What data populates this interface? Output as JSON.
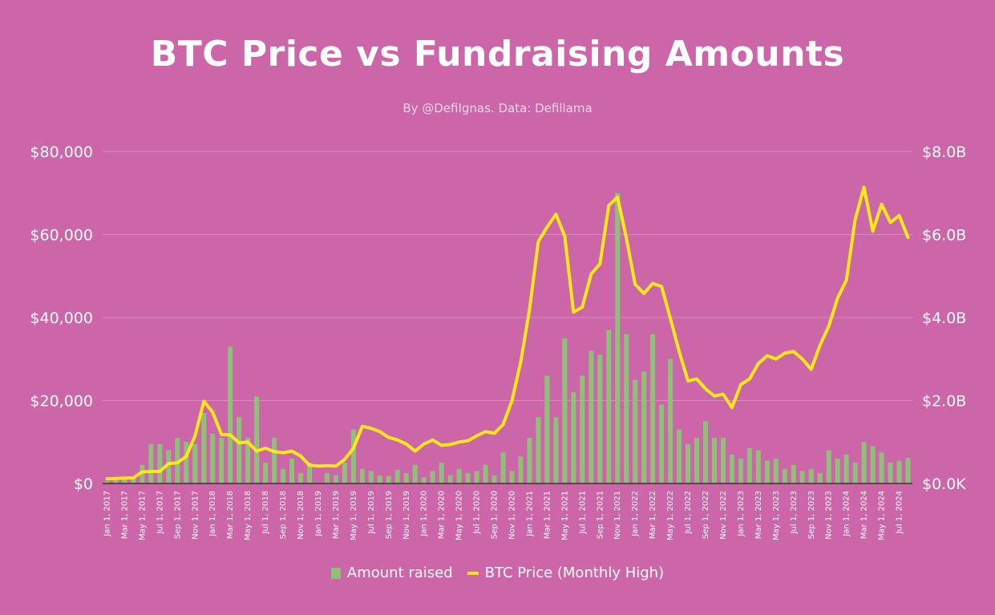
{
  "chart_data": {
    "type": "bar+line",
    "title": "BTC Price vs Fundraising Amounts",
    "subtitle": "By @DefiIgnas. Data: Defillama",
    "colors": {
      "background": "#cc66a8",
      "bars": "#8fbf78",
      "line": "#ffe81a",
      "grid": "#d58fbd",
      "text": "#ffffff"
    },
    "left_axis": {
      "min": 0,
      "max": 80000,
      "ticks": [
        0,
        20000,
        40000,
        60000,
        80000
      ],
      "tick_labels": [
        "$0",
        "$20,000",
        "$40,000",
        "$60,000",
        "$80,000"
      ]
    },
    "right_axis": {
      "min": 0,
      "max": 8.0,
      "ticks": [
        0,
        2,
        4,
        6,
        8
      ],
      "tick_labels": [
        "$0.0K",
        "$2.0B",
        "$4.0B",
        "$6.0B",
        "$8.0B"
      ]
    },
    "grid": true,
    "legend_position": "bottom",
    "x_tick_labels": [
      "Jan 1, 2017",
      "Mar 1, 2017",
      "May 1, 2017",
      "Jul 1, 2017",
      "Sep 1, 2017",
      "Nov 1, 2017",
      "Jan 1, 2018",
      "Mar 1, 2018",
      "May 1, 2018",
      "Jul 1, 2018",
      "Sep 1, 2018",
      "Nov 1, 2018",
      "Jan 1, 2019",
      "Mar 1, 2019",
      "May 1, 2019",
      "Jul 1, 2019",
      "Sep 1, 2019",
      "Nov 1, 2019",
      "Jan 1, 2020",
      "Mar 1, 2020",
      "May 1, 2020",
      "Jul 1, 2020",
      "Sep 1, 2020",
      "Nov 1, 2020",
      "Jan 1, 2021",
      "Mar 1, 2021",
      "May 1, 2021",
      "Jul 1, 2021",
      "Sep 1, 2021",
      "Nov 1, 2021",
      "Jan 1, 2022",
      "Mar 1, 2022",
      "May 1, 2022",
      "Jul 1, 2022",
      "Sep 1, 2022",
      "Nov 1, 2022",
      "Jan 1, 2023",
      "Mar 1, 2023",
      "May 1, 2023",
      "Jul 1, 2023",
      "Sep 1, 2023",
      "Nov 1, 2023",
      "Jan 1, 2024",
      "Mar 1, 2024",
      "May 1, 2024",
      "Jul 1, 2024"
    ],
    "x_start": "Jan 2017",
    "x_end": "Aug 2024",
    "series": [
      {
        "name": "Amount raised",
        "type": "bar",
        "axis": "right",
        "unit": "B USD",
        "values": [
          0.05,
          0.08,
          0.15,
          0.15,
          0.45,
          0.95,
          0.95,
          0.8,
          1.1,
          1.0,
          0.95,
          1.7,
          1.2,
          1.1,
          3.3,
          1.6,
          1.1,
          2.1,
          0.5,
          1.1,
          0.35,
          0.6,
          0.25,
          0.5,
          0.02,
          0.25,
          0.2,
          0.5,
          1.3,
          0.35,
          0.3,
          0.2,
          0.18,
          0.33,
          0.25,
          0.45,
          0.15,
          0.3,
          0.5,
          0.2,
          0.35,
          0.25,
          0.3,
          0.45,
          0.2,
          0.75,
          0.3,
          0.65,
          1.1,
          1.6,
          2.6,
          1.6,
          3.5,
          2.2,
          2.6,
          3.2,
          3.1,
          3.7,
          7.0,
          3.6,
          2.5,
          2.7,
          3.6,
          1.9,
          3.0,
          1.3,
          0.95,
          1.1,
          1.5,
          1.1,
          1.1,
          0.7,
          0.6,
          0.85,
          0.8,
          0.55,
          0.6,
          0.35,
          0.45,
          0.3,
          0.35,
          0.25,
          0.8,
          0.6,
          0.7,
          0.5,
          1.0,
          0.9,
          0.75,
          0.5,
          0.55,
          0.62
        ]
      },
      {
        "name": "BTC Price (Monthly High)",
        "type": "line",
        "axis": "left",
        "unit": "USD",
        "values": [
          1100,
          1200,
          1300,
          1350,
          2800,
          2900,
          2900,
          4800,
          5000,
          6500,
          11500,
          19800,
          17200,
          11800,
          11700,
          9800,
          10000,
          7800,
          8500,
          7700,
          7400,
          7800,
          6600,
          4400,
          4200,
          4300,
          4200,
          5800,
          8500,
          13800,
          13300,
          12500,
          11100,
          10500,
          9500,
          7800,
          9500,
          10500,
          9200,
          9400,
          10000,
          10300,
          11500,
          12500,
          12100,
          14200,
          19900,
          29300,
          41900,
          58300,
          61800,
          64900,
          59600,
          41300,
          42500,
          50500,
          52900,
          67000,
          69000,
          59200,
          48000,
          45800,
          48200,
          47500,
          39800,
          31800,
          24700,
          25200,
          22800,
          21100,
          21500,
          18300,
          23800,
          25200,
          28900,
          30800,
          30000,
          31400,
          31800,
          30000,
          27500,
          33300,
          37900,
          44700,
          49000,
          63600,
          71400,
          60800,
          67300,
          62900,
          64600,
          59300
        ]
      }
    ]
  }
}
